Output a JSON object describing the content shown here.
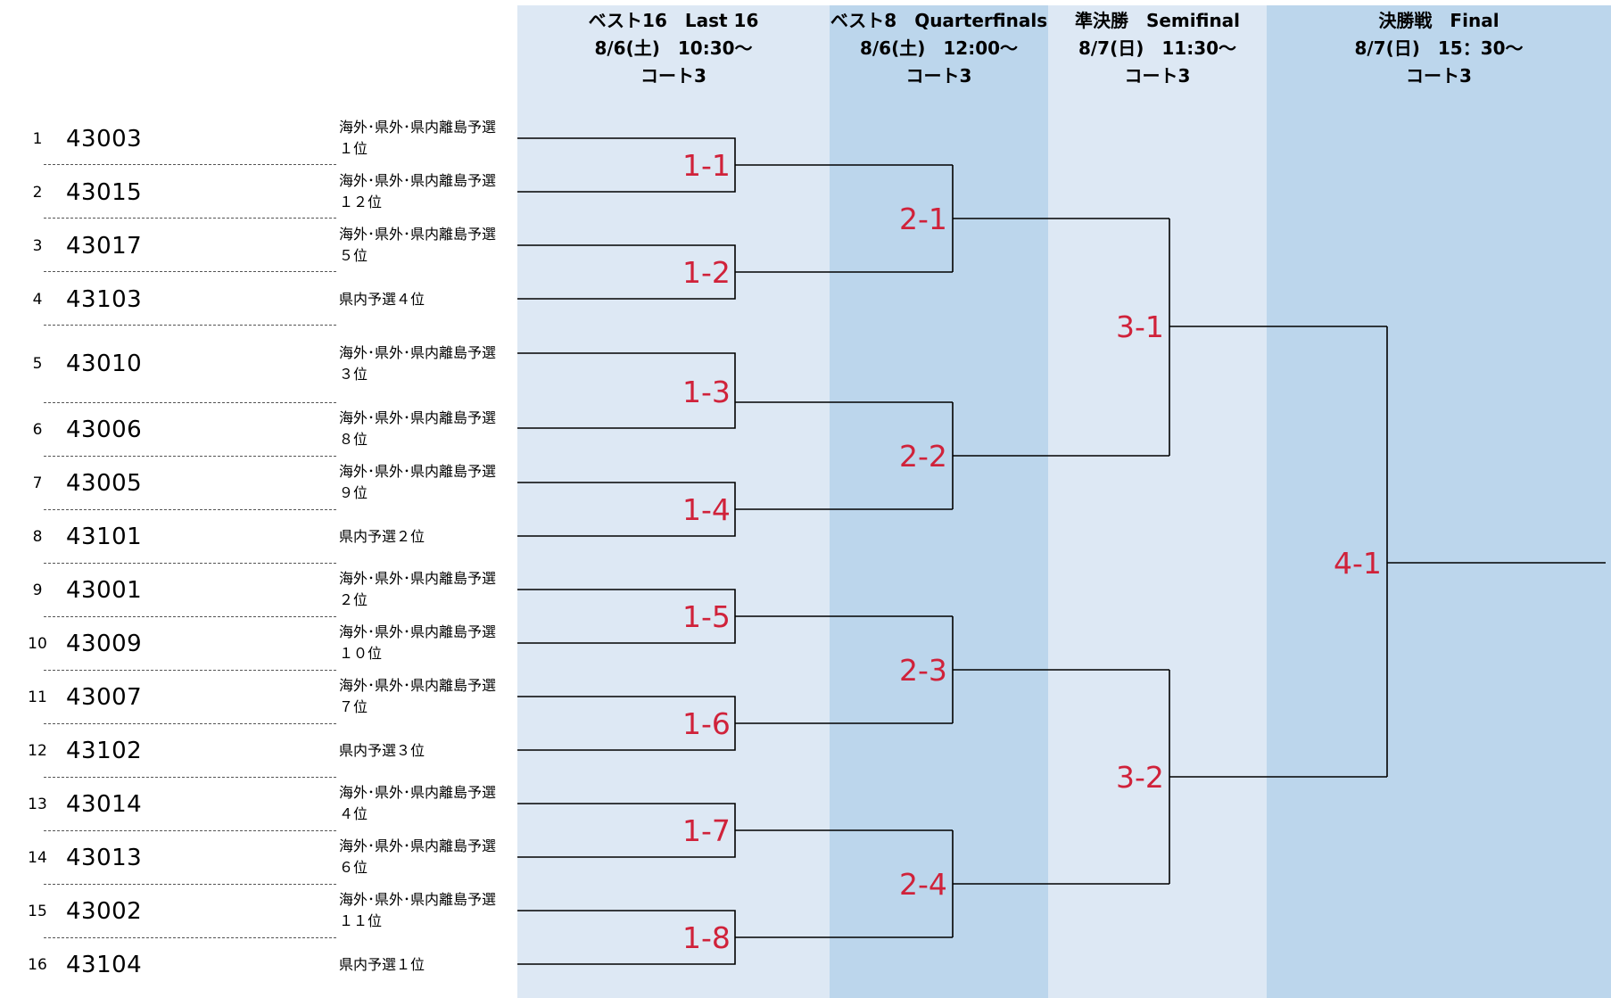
{
  "rounds": [
    {
      "title": "ベスト16　Last 16",
      "datetime": "8/6(土)　10:30～",
      "court": "コート3"
    },
    {
      "title": "ベスト8　Quarterfinals",
      "datetime": "8/6(土)　12:00～",
      "court": "コート3"
    },
    {
      "title": "準決勝　Semifinal",
      "datetime": "8/7(日)　11:30～",
      "court": "コート3"
    },
    {
      "title": "決勝戦　Final",
      "datetime": "8/7(日)　15：30～",
      "court": "コート3"
    }
  ],
  "teams": [
    {
      "seed": "1",
      "id": "43003",
      "qual1": "海外･県外･県内離島予選",
      "qual2": "１位"
    },
    {
      "seed": "2",
      "id": "43015",
      "qual1": "海外･県外･県内離島予選",
      "qual2": "１２位"
    },
    {
      "seed": "3",
      "id": "43017",
      "qual1": "海外･県外･県内離島予選",
      "qual2": "５位"
    },
    {
      "seed": "4",
      "id": "43103",
      "qual1": "県内予選４位",
      "qual2": ""
    },
    {
      "seed": "5",
      "id": "43010",
      "qual1": "海外･県外･県内離島予選",
      "qual2": "３位"
    },
    {
      "seed": "6",
      "id": "43006",
      "qual1": "海外･県外･県内離島予選",
      "qual2": "８位"
    },
    {
      "seed": "7",
      "id": "43005",
      "qual1": "海外･県外･県内離島予選",
      "qual2": "９位"
    },
    {
      "seed": "8",
      "id": "43101",
      "qual1": "県内予選２位",
      "qual2": ""
    },
    {
      "seed": "9",
      "id": "43001",
      "qual1": "海外･県外･県内離島予選",
      "qual2": "２位"
    },
    {
      "seed": "10",
      "id": "43009",
      "qual1": "海外･県外･県内離島予選",
      "qual2": "１０位"
    },
    {
      "seed": "11",
      "id": "43007",
      "qual1": "海外･県外･県内離島予選",
      "qual2": "７位"
    },
    {
      "seed": "12",
      "id": "43102",
      "qual1": "県内予選３位",
      "qual2": ""
    },
    {
      "seed": "13",
      "id": "43014",
      "qual1": "海外･県外･県内離島予選",
      "qual2": "４位"
    },
    {
      "seed": "14",
      "id": "43013",
      "qual1": "海外･県外･県内離島予選",
      "qual2": "６位"
    },
    {
      "seed": "15",
      "id": "43002",
      "qual1": "海外･県外･県内離島予選",
      "qual2": "１１位"
    },
    {
      "seed": "16",
      "id": "43104",
      "qual1": "県内予選１位",
      "qual2": ""
    }
  ],
  "matches": {
    "r1": [
      "1-1",
      "1-2",
      "1-3",
      "1-4",
      "1-5",
      "1-6",
      "1-7",
      "1-8"
    ],
    "r2": [
      "2-1",
      "2-2",
      "2-3",
      "2-4"
    ],
    "r3": [
      "3-1",
      "3-2"
    ],
    "r4": [
      "4-1"
    ]
  },
  "colors": {
    "col_light": "#dde8f4",
    "col_dark": "#bcd6ec",
    "match_label": "#d0223a",
    "line": "#000000"
  }
}
